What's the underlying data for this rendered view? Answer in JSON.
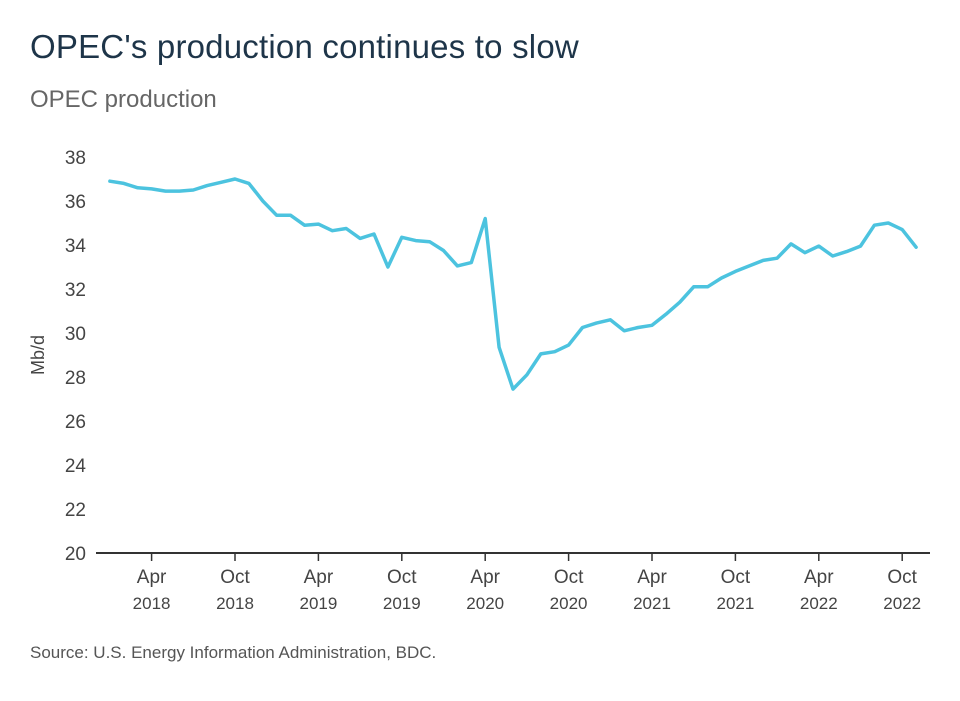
{
  "title": "OPEC's production continues to slow",
  "subtitle": "OPEC production",
  "source": "Source: U.S. Energy Information Administration, BDC.",
  "colors": {
    "line": "#4cc3df",
    "axis": "#333333",
    "title": "#1e3549",
    "text": "#444444"
  },
  "chart_data": {
    "type": "line",
    "title": "OPEC's production continues to slow",
    "subtitle": "OPEC production",
    "xlabel": "",
    "ylabel": "Mb/d",
    "ylim": [
      20,
      38
    ],
    "yticks": [
      20,
      22,
      24,
      26,
      28,
      30,
      32,
      34,
      36,
      38
    ],
    "grid": false,
    "xticks": [
      {
        "date": "2018-04",
        "month": "Apr",
        "year": "2018"
      },
      {
        "date": "2018-10",
        "month": "Oct",
        "year": "2018"
      },
      {
        "date": "2019-04",
        "month": "Apr",
        "year": "2019"
      },
      {
        "date": "2019-10",
        "month": "Oct",
        "year": "2019"
      },
      {
        "date": "2020-04",
        "month": "Apr",
        "year": "2020"
      },
      {
        "date": "2020-10",
        "month": "Oct",
        "year": "2020"
      },
      {
        "date": "2021-04",
        "month": "Apr",
        "year": "2021"
      },
      {
        "date": "2021-10",
        "month": "Oct",
        "year": "2021"
      },
      {
        "date": "2022-04",
        "month": "Apr",
        "year": "2022"
      },
      {
        "date": "2022-10",
        "month": "Oct",
        "year": "2022"
      }
    ],
    "series": [
      {
        "color": "#4cc3df",
        "x": [
          "2018-01",
          "2018-02",
          "2018-03",
          "2018-04",
          "2018-05",
          "2018-06",
          "2018-07",
          "2018-08",
          "2018-09",
          "2018-10",
          "2018-11",
          "2018-12",
          "2019-01",
          "2019-02",
          "2019-03",
          "2019-04",
          "2019-05",
          "2019-06",
          "2019-07",
          "2019-08",
          "2019-09",
          "2019-10",
          "2019-11",
          "2019-12",
          "2020-01",
          "2020-02",
          "2020-03",
          "2020-04",
          "2020-05",
          "2020-06",
          "2020-07",
          "2020-08",
          "2020-09",
          "2020-10",
          "2020-11",
          "2020-12",
          "2021-01",
          "2021-02",
          "2021-03",
          "2021-04",
          "2021-05",
          "2021-06",
          "2021-07",
          "2021-08",
          "2021-09",
          "2021-10",
          "2021-11",
          "2021-12",
          "2022-01",
          "2022-02",
          "2022-03",
          "2022-04",
          "2022-05",
          "2022-06",
          "2022-07",
          "2022-08",
          "2022-09",
          "2022-10",
          "2022-11"
        ],
        "values": [
          36.9,
          36.8,
          36.6,
          36.55,
          36.45,
          36.45,
          36.5,
          36.7,
          36.85,
          37.0,
          36.8,
          36.0,
          35.35,
          35.35,
          34.9,
          34.95,
          34.65,
          34.75,
          34.3,
          34.5,
          33.0,
          34.35,
          34.2,
          34.15,
          33.75,
          33.05,
          33.2,
          35.2,
          29.35,
          27.45,
          28.1,
          29.05,
          29.15,
          29.45,
          30.25,
          30.45,
          30.6,
          30.1,
          30.25,
          30.35,
          30.85,
          31.4,
          32.1,
          32.1,
          32.5,
          32.8,
          33.05,
          33.3,
          33.4,
          34.05,
          33.65,
          33.95,
          33.5,
          33.7,
          33.95,
          34.9,
          35.0,
          34.7,
          33.9
        ]
      }
    ]
  }
}
